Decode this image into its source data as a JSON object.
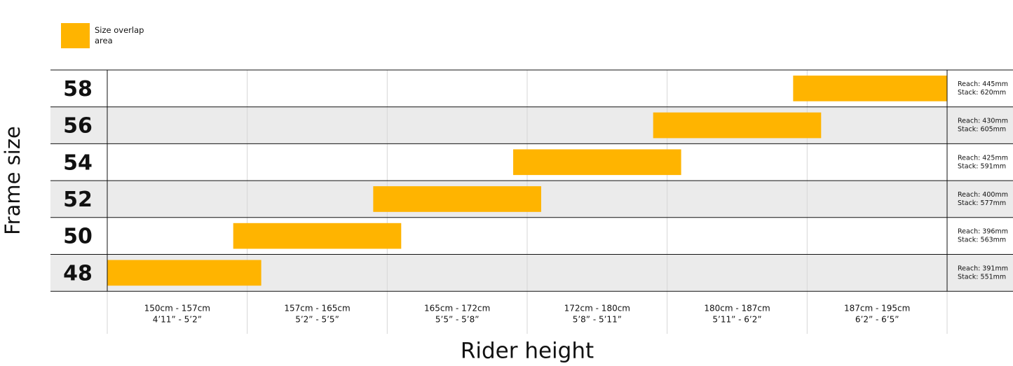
{
  "chart_data": {
    "type": "range-bar",
    "legend_label": "Size overlap area",
    "color": "#ffb400",
    "y_title": "Frame size",
    "x_title": "Rider height",
    "categories": [
      "58",
      "56",
      "54",
      "52",
      "50",
      "48"
    ],
    "starts": [
      4.9,
      3.9,
      2.9,
      1.9,
      0.9,
      0
    ],
    "ends": [
      6,
      5.1,
      4.1,
      3.1,
      2.1,
      1.1
    ],
    "notes": [
      [
        "Reach: 445mm",
        "Stack: 620mm"
      ],
      [
        "Reach: 430mm",
        "Stack: 605mm"
      ],
      [
        "Reach: 425mm",
        "Stack: 591mm"
      ],
      [
        "Reach: 400mm",
        "Stack: 577mm"
      ],
      [
        "Reach: 396mm",
        "Stack: 563mm"
      ],
      [
        "Reach: 391mm",
        "Stack: 551mm"
      ]
    ],
    "columns": [
      [
        "150cm - 157cm",
        "4’11” - 5’2”"
      ],
      [
        "157cm - 165cm",
        "5’2” - 5’5”"
      ],
      [
        "165cm - 172cm",
        "5’5” - 5’8”"
      ],
      [
        "172cm - 180cm",
        "5’8” - 5’11”"
      ],
      [
        "180cm - 187cm",
        "5’11” - 6’2”"
      ],
      [
        "187cm - 195cm",
        "6’2” - 6’5”"
      ]
    ],
    "xlim": [
      0,
      6
    ]
  }
}
